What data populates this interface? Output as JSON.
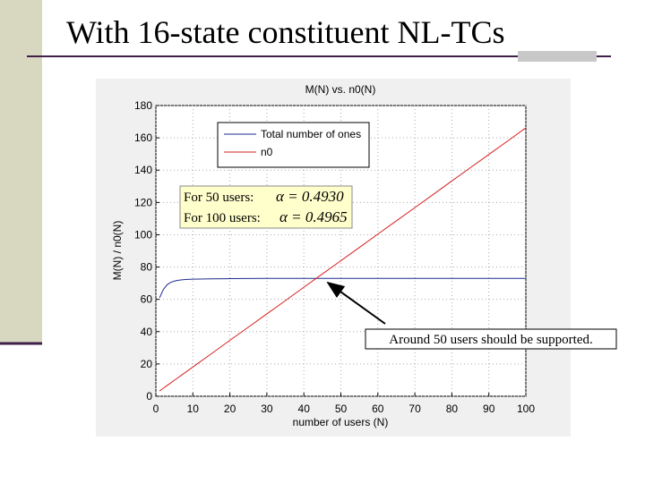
{
  "header": {
    "title": "With 16-state constituent NL-TCs"
  },
  "chart_data": {
    "type": "line",
    "title": "M(N) vs. n0(N)",
    "x_label": "number of users (N)",
    "y_label": "M(N) / n0(N)",
    "x": [
      1,
      2,
      3,
      4,
      5,
      6,
      7,
      8,
      10,
      15,
      20,
      25,
      30,
      35,
      40,
      45,
      50,
      55,
      60,
      65,
      70,
      75,
      80,
      85,
      90,
      95,
      100
    ],
    "series": [
      {
        "name": "Total number of ones",
        "color": "#1f2a8c",
        "values": [
          61,
          66,
          69,
          70.5,
          71.3,
          71.8,
          72.1,
          72.3,
          72.5,
          72.7,
          72.8,
          72.9,
          73,
          73,
          73,
          73,
          73,
          73,
          73,
          73,
          73,
          73,
          73,
          73,
          73,
          73,
          73
        ]
      },
      {
        "name": "n0",
        "color": "#d62020",
        "values": [
          3.3,
          4.9,
          6.6,
          8.2,
          9.9,
          11.5,
          13.2,
          14.8,
          18.1,
          26.3,
          34.6,
          42.8,
          51,
          59.2,
          67.5,
          75.7,
          83.9,
          92.1,
          100.4,
          108.6,
          116.8,
          125,
          133.3,
          141.5,
          149.7,
          157.9,
          166.2
        ]
      }
    ],
    "xlim": [
      0,
      100
    ],
    "xticks": [
      0,
      10,
      20,
      30,
      40,
      50,
      60,
      70,
      80,
      90,
      100
    ],
    "ylim": [
      0,
      180
    ],
    "yticks": [
      0,
      20,
      40,
      60,
      80,
      100,
      120,
      140,
      160,
      180
    ],
    "grid": true,
    "legend": "upper-center",
    "annotations": [
      "For 50 users:",
      "α = 0.4930",
      "For 100 users:",
      "α = 0.4965",
      "Around 50 users should be supported."
    ]
  }
}
